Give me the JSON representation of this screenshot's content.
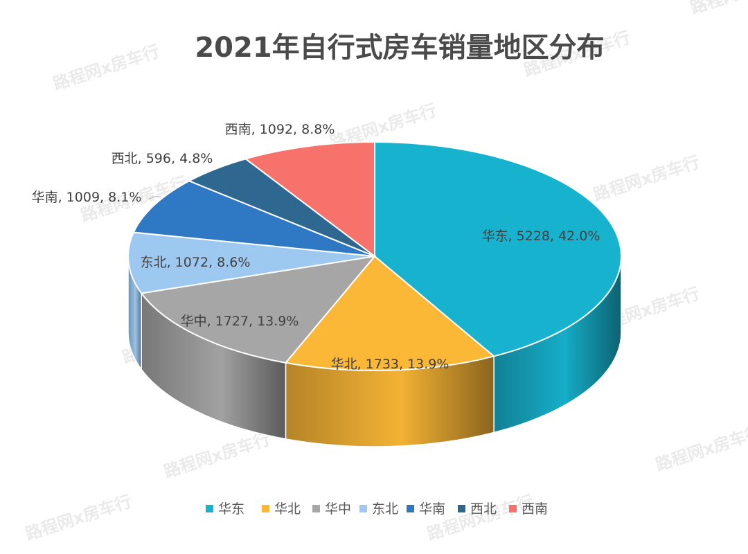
{
  "chart_data": {
    "type": "pie",
    "style": "3d",
    "title": "2021年自行式房车销量地区分布",
    "categories": [
      "华东",
      "华北",
      "华中",
      "东北",
      "华南",
      "西北",
      "西南"
    ],
    "values": [
      5228,
      1733,
      1727,
      1072,
      1009,
      596,
      1092
    ],
    "percents": [
      "42.0%",
      "13.9%",
      "13.9%",
      "8.6%",
      "8.1%",
      "4.8%",
      "8.8%"
    ],
    "data_labels": [
      "华东, 5228, 42.0%",
      "华北, 1733, 13.9%",
      "华中, 1727, 13.9%",
      "东北, 1072, 8.6%",
      "华南, 1009, 8.1%",
      "西北, 596, 4.8%",
      "西南, 1092, 8.8%"
    ],
    "colors": [
      "#17b2ce",
      "#fbb836",
      "#a6a6a6",
      "#9dc9f0",
      "#2f78c4",
      "#2e6890",
      "#f7726a"
    ],
    "legend_position": "bottom"
  },
  "watermark": "路程网x房车行"
}
